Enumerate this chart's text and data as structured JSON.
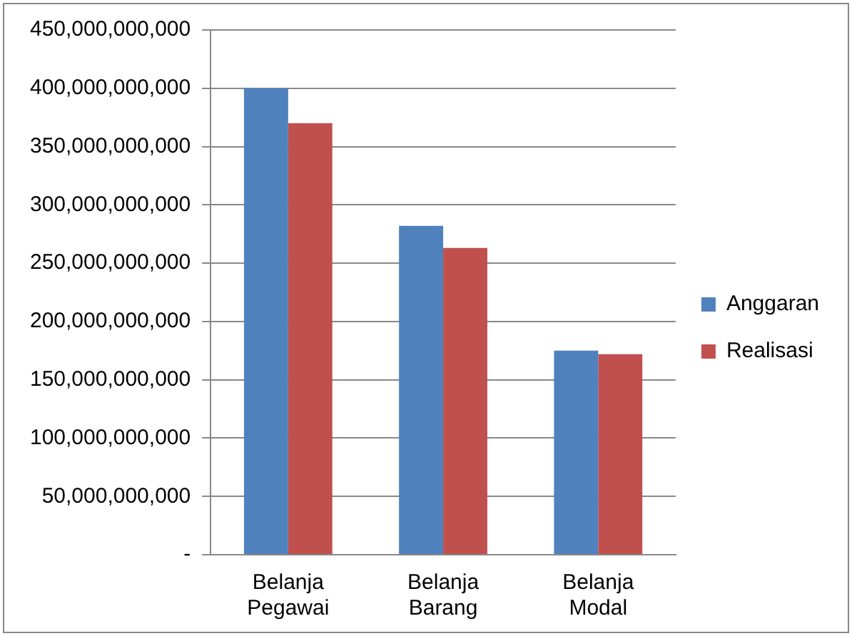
{
  "chart_data": {
    "type": "bar",
    "categories": [
      "Belanja Pegawai",
      "Belanja Barang",
      "Belanja Modal"
    ],
    "series": [
      {
        "name": "Anggaran",
        "color": "#4f81bd",
        "values": [
          400000000000,
          282000000000,
          175000000000
        ]
      },
      {
        "name": "Realisasi",
        "color": "#c0504d",
        "values": [
          370000000000,
          263000000000,
          172000000000
        ]
      }
    ],
    "ylim": [
      0,
      450000000000
    ],
    "yticks": [
      {
        "value": 0,
        "label": "-"
      },
      {
        "value": 50000000000,
        "label": "50,000,000,000"
      },
      {
        "value": 100000000000,
        "label": "100,000,000,000"
      },
      {
        "value": 150000000000,
        "label": "150,000,000,000"
      },
      {
        "value": 200000000000,
        "label": "200,000,000,000"
      },
      {
        "value": 250000000000,
        "label": "250,000,000,000"
      },
      {
        "value": 300000000000,
        "label": "300,000,000,000"
      },
      {
        "value": 350000000000,
        "label": "350,000,000,000"
      },
      {
        "value": 400000000000,
        "label": "400,000,000,000"
      },
      {
        "value": 450000000000,
        "label": "450,000,000,000"
      }
    ],
    "grid": "y",
    "legend": "right"
  }
}
